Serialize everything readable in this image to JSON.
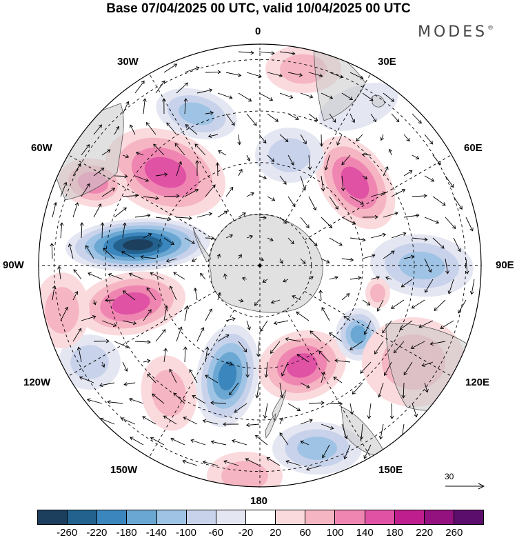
{
  "title": "Base 07/04/2025 00 UTC, valid 10/04/2025 00 UTC",
  "brand": {
    "name": "MODES",
    "mark": "®"
  },
  "longitude_labels": {
    "top": "0",
    "bottom": "180",
    "left": "90W",
    "right": "90E",
    "nw_upper": "30W",
    "nw_lower": "60W",
    "ne_upper": "30E",
    "ne_lower": "60E",
    "sw_upper": "120W",
    "sw_lower": "150W",
    "se_upper": "120E",
    "se_lower": "150E"
  },
  "reference_vector": {
    "label": "30"
  },
  "colorbar": {
    "colors": [
      "#1d3f5e",
      "#23628f",
      "#3b86bd",
      "#6aa7d2",
      "#9fc3e4",
      "#c8d2ea",
      "#e4e6f2",
      "#ffffff",
      "#fadadd",
      "#f6b5c3",
      "#ef86b1",
      "#e052a4",
      "#bf1f8e",
      "#94127f",
      "#5c0e6d"
    ],
    "ticks": [
      "-260",
      "-220",
      "-180",
      "-140",
      "-100",
      "-60",
      "-20",
      "20",
      "60",
      "100",
      "140",
      "180",
      "220",
      "260"
    ]
  }
}
